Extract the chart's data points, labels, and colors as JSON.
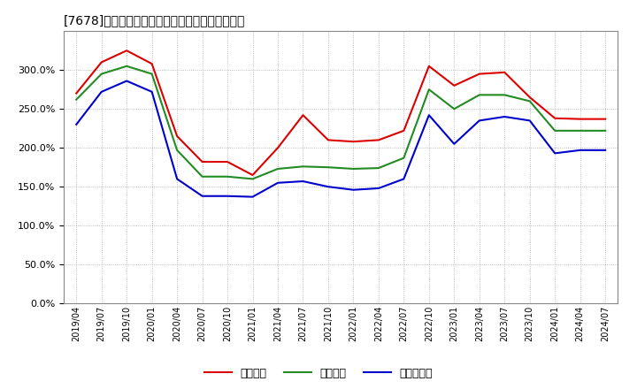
{
  "title": "[7678]　流動比率、当座比率、現預金比率の推移",
  "legend_labels": [
    "流動比率",
    "当座比率",
    "現預金比率"
  ],
  "line_colors": [
    "#dd0000",
    "#228b22",
    "#0000cc"
  ],
  "fig_bg_color": "#ffffff",
  "plot_bg_color": "#ffffff",
  "ylim": [
    0.0,
    3.5
  ],
  "yticks": [
    0.0,
    0.5,
    1.0,
    1.5,
    2.0,
    2.5,
    3.0
  ],
  "dates": [
    "2019/04",
    "2019/07",
    "2019/10",
    "2020/01",
    "2020/04",
    "2020/07",
    "2020/10",
    "2021/01",
    "2021/04",
    "2021/07",
    "2021/10",
    "2022/01",
    "2022/04",
    "2022/07",
    "2022/10",
    "2023/01",
    "2023/04",
    "2023/07",
    "2023/10",
    "2024/01",
    "2024/04",
    "2024/07"
  ],
  "ryudo": [
    2.7,
    3.1,
    3.25,
    3.08,
    2.15,
    1.82,
    1.82,
    1.65,
    2.0,
    2.42,
    2.1,
    2.08,
    2.1,
    2.22,
    3.05,
    2.8,
    2.95,
    2.97,
    2.65,
    2.38,
    2.37,
    2.37
  ],
  "toza": [
    2.62,
    2.95,
    3.05,
    2.95,
    1.97,
    1.63,
    1.63,
    1.6,
    1.73,
    1.76,
    1.75,
    1.73,
    1.74,
    1.87,
    2.75,
    2.5,
    2.68,
    2.68,
    2.6,
    2.22,
    2.22,
    2.22
  ],
  "genkin": [
    2.3,
    2.72,
    2.86,
    2.72,
    1.6,
    1.38,
    1.38,
    1.37,
    1.55,
    1.57,
    1.5,
    1.46,
    1.48,
    1.6,
    2.42,
    2.05,
    2.35,
    2.4,
    2.35,
    1.93,
    1.97,
    1.97
  ]
}
